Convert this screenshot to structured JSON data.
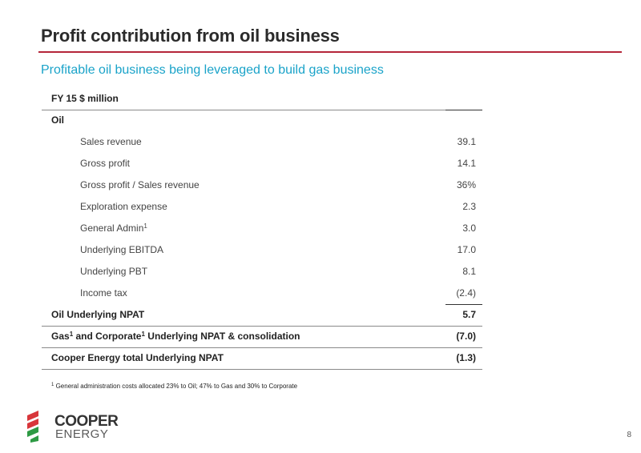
{
  "header": {
    "title": "Profit contribution from oil business",
    "subtitle": "Profitable oil business being leveraged to build gas business"
  },
  "table": {
    "column_header": "FY 15 $ million",
    "section_label": "Oil",
    "rows": [
      {
        "label": "Sales revenue",
        "value": "39.1"
      },
      {
        "label": "Gross profit",
        "value": "14.1"
      },
      {
        "label": "Gross profit / Sales revenue",
        "value": "36%"
      },
      {
        "label": "Exploration expense",
        "value": "2.3"
      },
      {
        "label": "General Admin",
        "sup": "1",
        "value": "3.0"
      },
      {
        "label": "Underlying EBITDA",
        "value": "17.0"
      },
      {
        "label": "Underlying PBT",
        "value": "8.1"
      },
      {
        "label": "Income tax",
        "value": "(2.4)"
      }
    ],
    "oil_npat": {
      "label": "Oil Underlying NPAT",
      "value": "5.7"
    },
    "gas_corp": {
      "label_gas": "Gas",
      "sup1": "1",
      "label_and": " and Corporate",
      "sup2": "1",
      "label_rest": " Underlying NPAT & consolidation",
      "value": "(7.0)"
    },
    "total": {
      "label": "Cooper Energy total Underlying NPAT",
      "value": "(1.3)"
    }
  },
  "footnote": {
    "sup": "1",
    "text": " General administration costs allocated 23% to Oil; 47% to Gas and 30% to Corporate"
  },
  "logo": {
    "word1": "COOPER",
    "word2": "ENERGY"
  },
  "page_number": "8",
  "colors": {
    "accent_red": "#b5263a",
    "subtitle_blue": "#1aa3c9",
    "logo_green": "#2e9a44",
    "logo_red": "#d8363b"
  }
}
